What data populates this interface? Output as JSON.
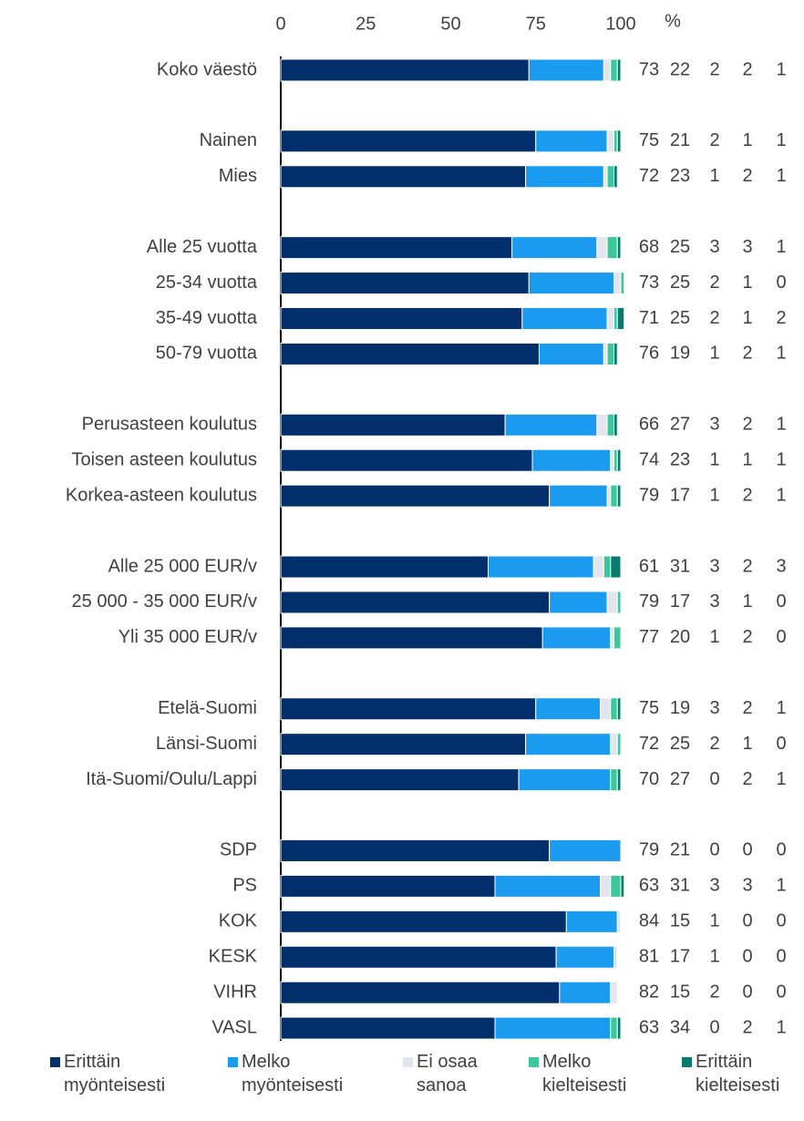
{
  "chart_data": {
    "type": "stacked_bar_horizontal",
    "x_unit": "%",
    "xlim": [
      0,
      100
    ],
    "xticks": [
      0,
      25,
      50,
      75,
      100
    ],
    "categories": [
      "Koko väestö",
      null,
      "Nainen",
      "Mies",
      null,
      "Alle 25 vuotta",
      "25-34 vuotta",
      "35-49 vuotta",
      "50-79 vuotta",
      null,
      "Perusasteen koulutus",
      "Toisen asteen koulutus",
      "Korkea-asteen koulutus",
      null,
      "Alle 25 000 EUR/v",
      "25 000 - 35 000 EUR/v",
      "Yli 35 000 EUR/v",
      null,
      "Etelä-Suomi",
      "Länsi-Suomi",
      "Itä-Suomi/Oulu/Lappi",
      null,
      "SDP",
      "PS",
      "KOK",
      "KESK",
      "VIHR",
      "VASL"
    ],
    "series": [
      {
        "name": "Erittäin myönteisesti",
        "color": "#002f6c",
        "values": [
          73,
          null,
          75,
          72,
          null,
          68,
          73,
          71,
          76,
          null,
          66,
          74,
          79,
          null,
          61,
          79,
          77,
          null,
          75,
          72,
          70,
          null,
          79,
          63,
          84,
          81,
          82,
          63
        ]
      },
      {
        "name": "Melko myönteisesti",
        "color": "#1a9bf0",
        "values": [
          22,
          null,
          21,
          23,
          null,
          25,
          25,
          25,
          19,
          null,
          27,
          23,
          17,
          null,
          31,
          17,
          20,
          null,
          19,
          25,
          27,
          null,
          21,
          31,
          15,
          17,
          15,
          34
        ]
      },
      {
        "name": "Ei osaa sanoa",
        "color": "#e4e4ec",
        "values": [
          2,
          null,
          2,
          1,
          null,
          3,
          2,
          2,
          1,
          null,
          3,
          1,
          1,
          null,
          3,
          3,
          1,
          null,
          3,
          2,
          0,
          null,
          0,
          3,
          1,
          1,
          2,
          0
        ]
      },
      {
        "name": "Melko kielteisesti",
        "color": "#3cc79a",
        "values": [
          2,
          null,
          1,
          2,
          null,
          3,
          1,
          1,
          2,
          null,
          2,
          1,
          2,
          null,
          2,
          1,
          2,
          null,
          2,
          1,
          2,
          null,
          0,
          3,
          0,
          0,
          0,
          2
        ]
      },
      {
        "name": "Erittäin kielteisesti",
        "color": "#087a6e",
        "values": [
          1,
          null,
          1,
          1,
          null,
          1,
          0,
          2,
          1,
          null,
          1,
          1,
          1,
          null,
          3,
          0,
          0,
          null,
          1,
          0,
          1,
          null,
          0,
          1,
          0,
          0,
          0,
          1
        ]
      }
    ]
  }
}
